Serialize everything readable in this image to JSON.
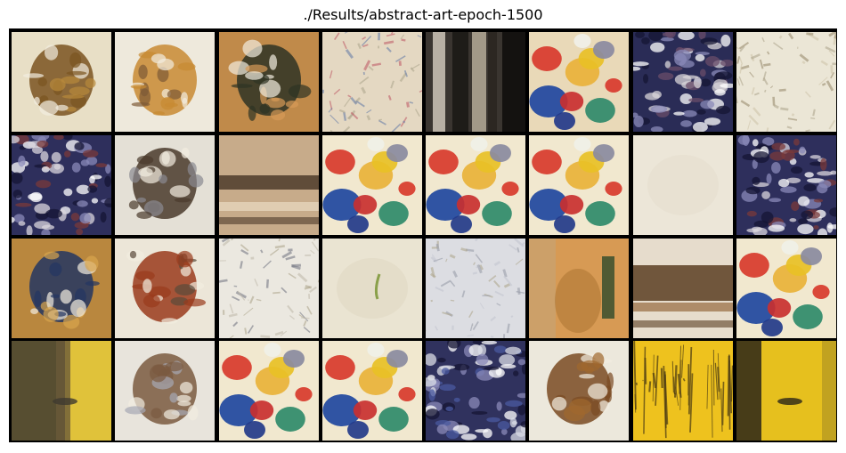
{
  "figure": {
    "title": "./Results/abstract-art-epoch-1500"
  },
  "grid_layout": {
    "rows": 4,
    "cols": 8
  },
  "palette": {
    "cream": "#ece6d6",
    "ochre": "#c98a3c",
    "brown": "#6b4a22",
    "navy": "#23265a",
    "yellow": "#e8c026",
    "red": "#c93030",
    "green": "#2f8a6a",
    "blue": "#2a4fa0"
  },
  "tiles": [
    {
      "style": "brown-blob",
      "bg": "#e8dfc6",
      "c1": "#7a5420",
      "c2": "#b8893a"
    },
    {
      "style": "light-swirl",
      "bg": "#eee9dc",
      "c1": "#c88a32",
      "c2": "#7d5a36"
    },
    {
      "style": "ochre-strokes",
      "bg": "#c08a4a",
      "c1": "#2e3324",
      "c2": "#d79a57"
    },
    {
      "style": "pastel-noise",
      "bg": "#e4d8c2",
      "c1": "#c0606a",
      "c2": "#6c80a8"
    },
    {
      "style": "dark-vertical",
      "bg": "#6b6358",
      "c1": "#1a1714",
      "c2": "#b7ad9e"
    },
    {
      "style": "colorful",
      "bg": "#e9d9b8",
      "c1": "#d0402e",
      "c2": "#3a62a8"
    },
    {
      "style": "navy-chaos",
      "bg": "#2a2c56",
      "c1": "#d8d4d8",
      "c2": "#6a4c6a"
    },
    {
      "style": "sketch",
      "bg": "#ebe6d6",
      "c1": "#9b8d70",
      "c2": "#cfc5ab"
    },
    {
      "style": "navy-chaos",
      "bg": "#2e2f5c",
      "c1": "#d9d6dc",
      "c2": "#7a3a3a"
    },
    {
      "style": "dark-figure",
      "bg": "#e4e0d6",
      "c1": "#4a3a2c",
      "c2": "#8a8a92"
    },
    {
      "style": "horizon",
      "bg": "#c7ab8a",
      "c1": "#4d3b2a",
      "c2": "#e6d6bc"
    },
    {
      "style": "colorful",
      "bg": "#f1e8cf",
      "c1": "#d8392c",
      "c2": "#1f46a0"
    },
    {
      "style": "colorful",
      "bg": "#f1e8cf",
      "c1": "#d8392c",
      "c2": "#1f46a0"
    },
    {
      "style": "colorful",
      "bg": "#f1e8cf",
      "c1": "#d8392c",
      "c2": "#1f46a0"
    },
    {
      "style": "blank",
      "bg": "#ece6d8",
      "c1": "#d9d2c0",
      "c2": "#e3dccb"
    },
    {
      "style": "navy-chaos",
      "bg": "#2e2f5c",
      "c1": "#d9d6dc",
      "c2": "#7a3a3a"
    },
    {
      "style": "blue-figure",
      "bg": "#b9873e",
      "c1": "#233662",
      "c2": "#d9a54d"
    },
    {
      "style": "red-figure",
      "bg": "#ece6d8",
      "c1": "#9a3a1c",
      "c2": "#5a4a3a"
    },
    {
      "style": "sketch",
      "bg": "#ebe8e0",
      "c1": "#777a86",
      "c2": "#c2bcae"
    },
    {
      "style": "blank-green",
      "bg": "#eae4d2",
      "c1": "#8aa04a",
      "c2": "#ddd5c0"
    },
    {
      "style": "sketch",
      "bg": "#dcdde2",
      "c1": "#9a9eaa",
      "c2": "#c4c6d0"
    },
    {
      "style": "ochre-panel",
      "bg": "#d79a54",
      "c1": "#a8702e",
      "c2": "#2e4a2a"
    },
    {
      "style": "band",
      "bg": "#e6dccc",
      "c1": "#5a3e22",
      "c2": "#a07850"
    },
    {
      "style": "colorful",
      "bg": "#f1e8cf",
      "c1": "#d8392c",
      "c2": "#1f46a0"
    },
    {
      "style": "dark-yellow",
      "bg": "#e0c23a",
      "c1": "#3e3a30",
      "c2": "#6a5a3a"
    },
    {
      "style": "dark-figure",
      "bg": "#e8e4dc",
      "c1": "#7a5a40",
      "c2": "#a6a8b4"
    },
    {
      "style": "colorful",
      "bg": "#f1e8cf",
      "c1": "#d8392c",
      "c2": "#1f46a0"
    },
    {
      "style": "colorful",
      "bg": "#f1e8cf",
      "c1": "#d8392c",
      "c2": "#1f46a0"
    },
    {
      "style": "navy-chaos",
      "bg": "#30325e",
      "c1": "#dadce6",
      "c2": "#4a5aa0"
    },
    {
      "style": "brown-blob",
      "bg": "#ece8dc",
      "c1": "#7a4a22",
      "c2": "#a0682e"
    },
    {
      "style": "yellow-cracks",
      "bg": "#eec21e",
      "c1": "#4a3a14",
      "c2": "#f5d64a"
    },
    {
      "style": "yellow-dark",
      "bg": "#e6c01e",
      "c1": "#2a2418",
      "c2": "#b89a20"
    }
  ]
}
